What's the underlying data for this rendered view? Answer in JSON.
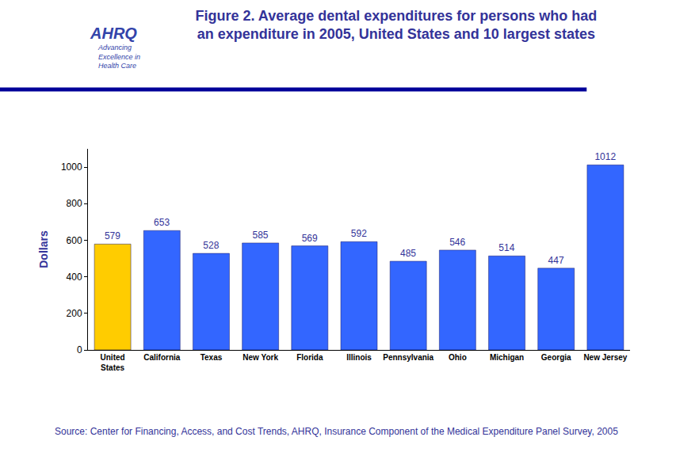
{
  "chart_data": {
    "type": "bar",
    "title": "Figure 2. Average dental expenditures for persons who had\nan expenditure in 2005, United States and 10 largest states",
    "y_label": "Dollars",
    "categories": [
      "United States",
      "California",
      "Texas",
      "New York",
      "Florida",
      "Illinois",
      "Pennsylvania",
      "Ohio",
      "Michigan",
      "Georgia",
      "New Jersey"
    ],
    "values": [
      579,
      653,
      528,
      585,
      569,
      592,
      485,
      546,
      514,
      447,
      1012
    ],
    "colors": [
      "#ffcc00",
      "#3366ff",
      "#3366ff",
      "#3366ff",
      "#3366ff",
      "#3366ff",
      "#3366ff",
      "#3366ff",
      "#3366ff",
      "#3366ff",
      "#3366ff"
    ],
    "ylim": [
      0,
      1100
    ],
    "yticks": [
      0,
      200,
      400,
      600,
      800,
      1000
    ],
    "grid": false,
    "data_labels": true,
    "annotations": [
      "AHRQ",
      "Advancing\nExcellence in\nHealth Care",
      "Source: Center for Financing, Access, and Cost Trends, AHRQ, Insurance Component of the Medical Expenditure Panel Survey, 2005"
    ]
  }
}
